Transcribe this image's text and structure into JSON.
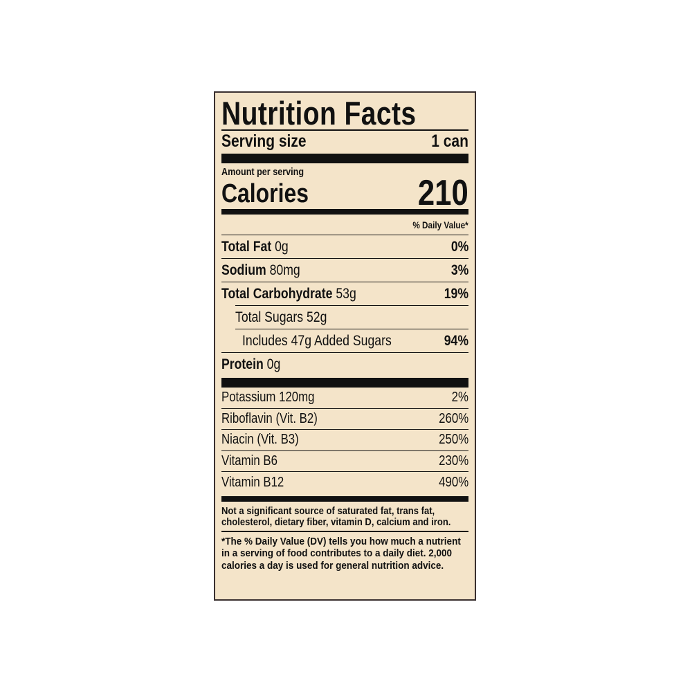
{
  "label": {
    "title": "Nutrition Facts",
    "serving_size_label": "Serving size",
    "serving_size_value": "1 can",
    "amount_per_serving": "Amount per serving",
    "calories_label": "Calories",
    "calories_value": "210",
    "daily_value_header": "% Daily Value*",
    "nutrients": [
      {
        "name": "Total Fat",
        "amount": "0g",
        "dv": "0%"
      },
      {
        "name": "Sodium",
        "amount": "80mg",
        "dv": "3%"
      },
      {
        "name": "Total Carbohydrate",
        "amount": "53g",
        "dv": "19%"
      },
      {
        "name": "Total Sugars 52g",
        "amount": "",
        "dv": ""
      },
      {
        "name": "Includes 47g Added Sugars",
        "amount": "",
        "dv": "94%"
      },
      {
        "name": "Protein",
        "amount": "0g",
        "dv": ""
      }
    ],
    "vitamins": [
      {
        "name": "Potassium 120mg",
        "dv": "2%"
      },
      {
        "name": "Riboflavin (Vit. B2)",
        "dv": "260%"
      },
      {
        "name": "Niacin (Vit. B3)",
        "dv": "250%"
      },
      {
        "name": "Vitamin B6",
        "dv": "230%"
      },
      {
        "name": "Vitamin B12",
        "dv": "490%"
      }
    ],
    "footnote_sources": "Not a significant source of saturated fat, trans fat, cholesterol, dietary fiber, vitamin D, calcium and iron.",
    "footnote_dv": "*The % Daily Value (DV) tells you how much a nutrient in a serving of food contributes to a daily diet. 2,000 calories a day is used for general nutrition advice."
  },
  "colors": {
    "background": "#f4e4c9",
    "ink": "#111111"
  }
}
